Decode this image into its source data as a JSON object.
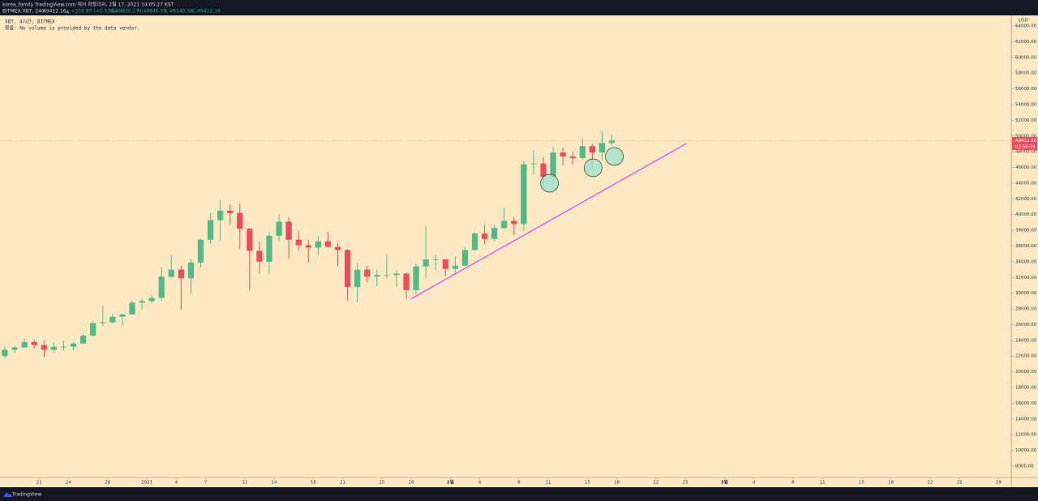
{
  "header": {
    "published": "korea_family TradingView.com 에서 퍼블리쉬, 2월 17, 2021 14:05:27 KST",
    "symbol": "BITMEX:XBT, 240",
    "price": "49412.16",
    "change": "▲ +259.87 (+0.53%)",
    "open": "O:49655.27",
    "high": "H:49946.59",
    "low": "L:49140.56",
    "close": "C:49412.16"
  },
  "footer": {
    "brand": "TradingView"
  },
  "chart_data": {
    "type": "candlestick",
    "title": "XBT, 4시간, BITMEX",
    "subtitle": "볼륨: No volume is provided by the data vendor.",
    "currency": "USD",
    "up_color": "#53b987",
    "down_color": "#eb4d5c",
    "x": [
      "2020-12-17",
      "2020-12-18",
      "2020-12-19",
      "2020-12-20",
      "2020-12-21",
      "2020-12-22",
      "2020-12-23",
      "2020-12-24",
      "2020-12-25",
      "2020-12-26",
      "2020-12-27",
      "2020-12-28",
      "2020-12-29",
      "2020-12-30",
      "2020-12-31",
      "2021-01-01",
      "2021-01-02",
      "2021-01-03",
      "2021-01-04",
      "2021-01-05",
      "2021-01-06",
      "2021-01-07",
      "2021-01-08",
      "2021-01-09",
      "2021-01-10",
      "2021-01-11",
      "2021-01-12",
      "2021-01-13",
      "2021-01-14",
      "2021-01-15",
      "2021-01-16",
      "2021-01-17",
      "2021-01-18",
      "2021-01-19",
      "2021-01-20",
      "2021-01-21",
      "2021-01-22",
      "2021-01-23",
      "2021-01-24",
      "2021-01-25",
      "2021-01-26",
      "2021-01-27",
      "2021-01-28",
      "2021-01-29",
      "2021-01-30",
      "2021-01-31",
      "2021-02-01",
      "2021-02-02",
      "2021-02-03",
      "2021-02-04",
      "2021-02-05",
      "2021-02-06",
      "2021-02-07",
      "2021-02-08",
      "2021-02-09",
      "2021-02-10",
      "2021-02-11",
      "2021-02-12",
      "2021-02-13",
      "2021-02-14",
      "2021-02-15",
      "2021-02-16",
      "2021-02-17"
    ],
    "open": [
      22000,
      22800,
      23100,
      23800,
      23400,
      22800,
      23200,
      23200,
      23600,
      24600,
      26200,
      26300,
      27000,
      27300,
      28800,
      29000,
      29400,
      32100,
      33000,
      31900,
      33900,
      36800,
      39300,
      40500,
      40200,
      38200,
      35400,
      34000,
      37300,
      39100,
      36800,
      36100,
      35800,
      36600,
      35900,
      35500,
      30800,
      33000,
      32100,
      32300,
      32300,
      32500,
      30400,
      33400,
      34300,
      34300,
      33100,
      33500,
      35500,
      37600,
      36900,
      38300,
      39200,
      38800,
      46400,
      46500,
      44800,
      47900,
      47400,
      47200,
      48700,
      47900,
      49100
    ],
    "high": [
      23200,
      23300,
      24200,
      24100,
      24000,
      23700,
      24000,
      23800,
      24800,
      26500,
      28400,
      27400,
      27400,
      29000,
      29300,
      29700,
      33300,
      34800,
      33500,
      34400,
      36900,
      40200,
      41900,
      41300,
      41400,
      38300,
      36600,
      37800,
      40100,
      39700,
      37900,
      36800,
      37300,
      37800,
      36400,
      35600,
      33800,
      33500,
      33000,
      34900,
      32900,
      32600,
      33800,
      38500,
      34900,
      34300,
      34700,
      35900,
      37800,
      38700,
      38700,
      40900,
      39700,
      46800,
      48200,
      47300,
      48600,
      48500,
      48000,
      49700,
      49000,
      50600,
      50200
    ],
    "low": [
      21700,
      22400,
      23000,
      23000,
      21900,
      22400,
      22700,
      22700,
      23500,
      24500,
      25800,
      26100,
      25900,
      27300,
      27900,
      28700,
      29000,
      31900,
      27900,
      29900,
      33300,
      36300,
      36700,
      38700,
      35600,
      30300,
      32500,
      32400,
      36600,
      34400,
      35400,
      33900,
      34800,
      35800,
      33400,
      29100,
      28800,
      31400,
      30900,
      31900,
      30800,
      29300,
      29900,
      31900,
      32900,
      32200,
      32300,
      33400,
      35400,
      36200,
      36600,
      38100,
      37400,
      37900,
      45000,
      43700,
      43900,
      46300,
      46400,
      47000,
      45800,
      47000,
      48800
    ],
    "close": [
      22800,
      23100,
      23800,
      23400,
      22800,
      23200,
      23200,
      23600,
      24600,
      26200,
      26300,
      27000,
      27300,
      28800,
      29000,
      29400,
      32100,
      33000,
      31900,
      33900,
      36800,
      39300,
      40500,
      40200,
      38200,
      35400,
      34000,
      37300,
      39100,
      36800,
      36100,
      35800,
      36600,
      35900,
      35500,
      30800,
      33000,
      32100,
      32300,
      32300,
      32500,
      30400,
      33400,
      34300,
      34300,
      33100,
      33500,
      35500,
      37600,
      36900,
      38300,
      39200,
      38800,
      46400,
      46500,
      44800,
      47900,
      47400,
      47200,
      48700,
      47900,
      49100,
      49412.16
    ],
    "xlim": [
      "2020-12-17T00:00",
      "2021-03-30T07:00"
    ],
    "xticks": [
      {
        "value": "2020-12-21",
        "label": "21"
      },
      {
        "value": "2020-12-24",
        "label": "24"
      },
      {
        "value": "2020-12-28",
        "label": "28"
      },
      {
        "value": "2021-01-01",
        "label": "2021"
      },
      {
        "value": "2021-01-04",
        "label": "4"
      },
      {
        "value": "2021-01-07",
        "label": "7"
      },
      {
        "value": "2021-01-11",
        "label": "11"
      },
      {
        "value": "2021-01-14",
        "label": "14"
      },
      {
        "value": "2021-01-18",
        "label": "18"
      },
      {
        "value": "2021-01-21",
        "label": "21"
      },
      {
        "value": "2021-01-25",
        "label": "25"
      },
      {
        "value": "2021-01-28",
        "label": "28"
      },
      {
        "value": "2021-02-01",
        "label": "2월"
      },
      {
        "value": "2021-02-04",
        "label": "4"
      },
      {
        "value": "2021-02-08",
        "label": "8"
      },
      {
        "value": "2021-02-11",
        "label": "11"
      },
      {
        "value": "2021-02-15",
        "label": "15"
      },
      {
        "value": "2021-02-18",
        "label": "18"
      },
      {
        "value": "2021-02-22",
        "label": "22"
      },
      {
        "value": "2021-02-25",
        "label": "25"
      },
      {
        "value": "2021-03-01",
        "label": "3월"
      },
      {
        "value": "2021-03-04",
        "label": "4"
      },
      {
        "value": "2021-03-08",
        "label": "8"
      },
      {
        "value": "2021-03-11",
        "label": "11"
      },
      {
        "value": "2021-03-15",
        "label": "15"
      },
      {
        "value": "2021-03-18",
        "label": "18"
      },
      {
        "value": "2021-03-22",
        "label": "22"
      },
      {
        "value": "2021-03-25",
        "label": "25"
      },
      {
        "value": "2021-03-29",
        "label": "29"
      }
    ],
    "ylim": [
      6556,
      65341
    ],
    "yticks": [
      {
        "value": 8000,
        "label": "8000.00"
      },
      {
        "value": 10000,
        "label": "10000.00"
      },
      {
        "value": 12000,
        "label": "12000.00"
      },
      {
        "value": 14000,
        "label": "14000.00"
      },
      {
        "value": 16000,
        "label": "16000.00"
      },
      {
        "value": 18000,
        "label": "18000.00"
      },
      {
        "value": 20000,
        "label": "20000.00"
      },
      {
        "value": 22000,
        "label": "22000.00"
      },
      {
        "value": 24000,
        "label": "24000.00"
      },
      {
        "value": 26000,
        "label": "26000.00"
      },
      {
        "value": 28000,
        "label": "28000.00"
      },
      {
        "value": 30000,
        "label": "30000.00"
      },
      {
        "value": 32000,
        "label": "32000.00"
      },
      {
        "value": 34000,
        "label": "34000.00"
      },
      {
        "value": 36000,
        "label": "36000.00"
      },
      {
        "value": 38000,
        "label": "38000.00"
      },
      {
        "value": 40000,
        "label": "40000.00"
      },
      {
        "value": 42000,
        "label": "42000.00"
      },
      {
        "value": 44000,
        "label": "44000.00"
      },
      {
        "value": 46000,
        "label": "46000.00"
      },
      {
        "value": 48000,
        "label": "48000.00"
      },
      {
        "value": 50000,
        "label": "50000.00"
      },
      {
        "value": 52000,
        "label": "52000.00"
      },
      {
        "value": 54000,
        "label": "54000.00"
      },
      {
        "value": 56000,
        "label": "56000.00"
      },
      {
        "value": 58000,
        "label": "58000.00"
      },
      {
        "value": 60000,
        "label": "60000.00"
      },
      {
        "value": 62000,
        "label": "62000.00"
      },
      {
        "value": 64000,
        "label": "64000.00"
      }
    ],
    "grid": false,
    "last_price": {
      "value": 49412.16,
      "label": "49412.16",
      "color": "#eb4d5c"
    },
    "countdown": "02:50:34",
    "trendline": {
      "x": [
        "2021-01-27T22:40",
        "2021-02-25T03:00"
      ],
      "y": [
        29245,
        49046
      ],
      "color": "#e040fb"
    },
    "circles": {
      "x": [
        "2021-02-11T03:00",
        "2021-02-15T14:00",
        "2021-02-17T18:00"
      ],
      "y": [
        43993,
        45952,
        47396
      ],
      "color": "#9fe3cc"
    }
  }
}
